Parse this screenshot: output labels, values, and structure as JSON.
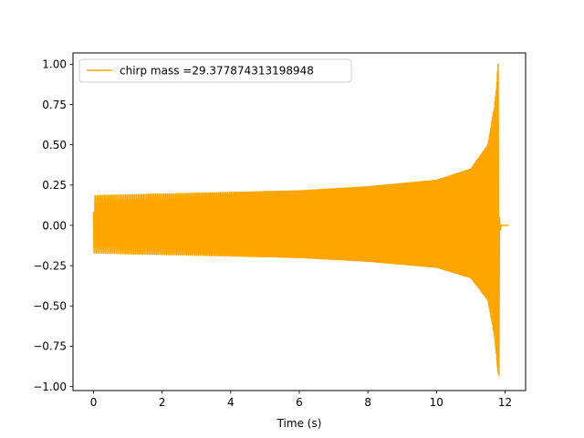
{
  "chart_data": {
    "type": "line",
    "title": "",
    "xlabel": "Time (s)",
    "ylabel": "",
    "xlim": [
      -0.6,
      12.6
    ],
    "ylim": [
      -1.025,
      1.07
    ],
    "xticks": [
      0,
      2,
      4,
      6,
      8,
      10,
      12
    ],
    "xtick_labels": [
      "0",
      "2",
      "4",
      "6",
      "8",
      "10",
      "12"
    ],
    "yticks": [
      -1.0,
      -0.75,
      -0.5,
      -0.25,
      0.0,
      0.25,
      0.5,
      0.75,
      1.0
    ],
    "ytick_labels": [
      "−1.00",
      "−0.75",
      "−0.50",
      "−0.25",
      "0.00",
      "0.25",
      "0.50",
      "0.75",
      "1.00"
    ],
    "grid": false,
    "legend_position": "top-left",
    "series": [
      {
        "name": "chirp mass =29.377874313198948",
        "color": "#ffa500",
        "merger_time": 11.8,
        "end_time": 12.1,
        "start_amplitude": 0.185,
        "peak_amplitude": 1.0,
        "min_amplitude": -0.93,
        "envelope": [
          {
            "t": 0.0,
            "amp": 0.185
          },
          {
            "t": 2.0,
            "amp": 0.195
          },
          {
            "t": 4.0,
            "amp": 0.205
          },
          {
            "t": 6.0,
            "amp": 0.215
          },
          {
            "t": 8.0,
            "amp": 0.24
          },
          {
            "t": 10.0,
            "amp": 0.28
          },
          {
            "t": 11.0,
            "amp": 0.35
          },
          {
            "t": 11.5,
            "amp": 0.5
          },
          {
            "t": 11.7,
            "amp": 0.75
          },
          {
            "t": 11.8,
            "amp": 1.0
          }
        ]
      }
    ]
  }
}
